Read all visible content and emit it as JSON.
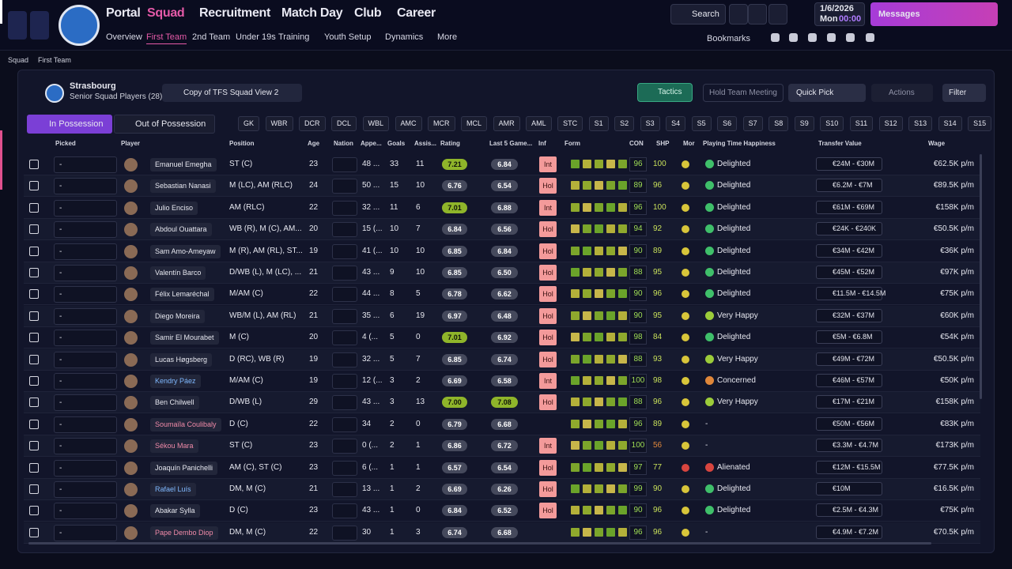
{
  "nav": {
    "primary": [
      "Portal",
      "Squad",
      "Recruitment",
      "Match Day",
      "Club",
      "Career"
    ],
    "secondary": [
      "Overview",
      "First Team",
      "2nd Team",
      "Under 19s",
      "Training",
      "Youth Setup",
      "Dynamics",
      "More"
    ],
    "search": "Search",
    "date": "1/6/2026",
    "day": "Mon",
    "time": "00:00",
    "messages": "Messages",
    "bookmarks": "Bookmarks"
  },
  "breadcrumb": [
    "Squad",
    "First Team"
  ],
  "team": {
    "name": "Strasbourg",
    "subtitle": "Senior Squad Players (28)"
  },
  "view": "Copy of TFS Squad View 2",
  "buttons": {
    "tactics": "Tactics",
    "meeting": "Hold Team Meeting",
    "quick_pick": "Quick Pick",
    "actions": "Actions",
    "filter": "Filter"
  },
  "tabs": [
    "In Possession",
    "Out of Possession"
  ],
  "positions": [
    "GK",
    "WBR",
    "DCR",
    "DCL",
    "WBL",
    "AMC",
    "MCR",
    "MCL",
    "AMR",
    "AML",
    "STC",
    "S1",
    "S2",
    "S3",
    "S4",
    "S5",
    "S6",
    "S7",
    "S8",
    "S9",
    "S10",
    "S11",
    "S12",
    "S13",
    "S14",
    "S15"
  ],
  "table": {
    "columns": [
      "Picked",
      "Player",
      "Position",
      "Age",
      "Nation",
      "Appe...",
      "Goals",
      "Assis...",
      "Rating",
      "Last 5 Game...",
      "Inf",
      "Form",
      "CON",
      "SHP",
      "Mor",
      "Playing Time Happiness",
      "Transfer Value",
      "Wage"
    ],
    "rows": [
      {
        "picked": "-",
        "name": "Emanuel Emegha",
        "position": "ST (C)",
        "age": 23,
        "apps": "48 ...",
        "goals": 33,
        "assists": 11,
        "rating": "7.21",
        "last5": "6.84",
        "inf": "Int",
        "con": 96,
        "shp": 100,
        "happiness": "Delighted",
        "value": "€24M - €30M",
        "wage": "€62.5K p/m"
      },
      {
        "picked": "-",
        "name": "Sebastian Nanasi",
        "position": "M (LC), AM (RLC)",
        "age": 24,
        "apps": "50 ...",
        "goals": 15,
        "assists": 10,
        "rating": "6.76",
        "last5": "6.54",
        "inf": "Hol",
        "con": 89,
        "shp": 96,
        "happiness": "Delighted",
        "value": "€6.2M - €7M",
        "wage": "€89.5K p/m"
      },
      {
        "picked": "-",
        "name": "Julio Enciso",
        "position": "AM (RLC)",
        "age": 22,
        "apps": "32 ...",
        "goals": 11,
        "assists": 6,
        "rating": "7.01",
        "last5": "6.88",
        "inf": "Int",
        "con": 96,
        "shp": 100,
        "happiness": "Delighted",
        "value": "€61M - €69M",
        "wage": "€158K p/m"
      },
      {
        "picked": "-",
        "name": "Abdoul Ouattara",
        "position": "WB (R), M (C), AM...",
        "age": 20,
        "apps": "15 (...",
        "goals": 10,
        "assists": 7,
        "rating": "6.84",
        "last5": "6.56",
        "inf": "Hol",
        "con": 94,
        "shp": 92,
        "happiness": "Delighted",
        "value": "€24K - €240K",
        "wage": "€50.5K p/m"
      },
      {
        "picked": "-",
        "name": "Sam Amo-Ameyaw",
        "position": "M (R), AM (RL), ST...",
        "age": 19,
        "apps": "41 (...",
        "goals": 10,
        "assists": 10,
        "rating": "6.85",
        "last5": "6.84",
        "inf": "Hol",
        "con": 90,
        "shp": 89,
        "happiness": "Delighted",
        "value": "€34M - €42M",
        "wage": "€36K p/m"
      },
      {
        "picked": "-",
        "name": "Valentín Barco",
        "position": "D/WB (L), M (LC), ...",
        "age": 21,
        "apps": "43 ...",
        "goals": 9,
        "assists": 10,
        "rating": "6.85",
        "last5": "6.50",
        "inf": "Hol",
        "con": 88,
        "shp": 95,
        "happiness": "Delighted",
        "value": "€45M - €52M",
        "wage": "€97K p/m"
      },
      {
        "picked": "-",
        "name": "Félix Lemaréchal",
        "position": "M/AM (C)",
        "age": 22,
        "apps": "44 ...",
        "goals": 8,
        "assists": 5,
        "rating": "6.78",
        "last5": "6.62",
        "inf": "Hol",
        "con": 90,
        "shp": 96,
        "happiness": "Delighted",
        "value": "€11.5M - €14.5M",
        "wage": "€75K p/m"
      },
      {
        "picked": "-",
        "name": "Diego Moreira",
        "position": "WB/M (L), AM (RL)",
        "age": 21,
        "apps": "35 ...",
        "goals": 6,
        "assists": 19,
        "rating": "6.97",
        "last5": "6.48",
        "inf": "Hol",
        "con": 90,
        "shp": 95,
        "happiness": "Very Happy",
        "value": "€32M - €37M",
        "wage": "€60K p/m"
      },
      {
        "picked": "-",
        "name": "Samir El Mourabet",
        "position": "M (C)",
        "age": 20,
        "apps": "4 (...",
        "goals": 5,
        "assists": 0,
        "rating": "7.01",
        "last5": "6.92",
        "inf": "Hol",
        "con": 98,
        "shp": 84,
        "happiness": "Delighted",
        "value": "€5M - €6.8M",
        "wage": "€54K p/m"
      },
      {
        "picked": "-",
        "name": "Lucas Høgsberg",
        "position": "D (RC), WB (R)",
        "age": 19,
        "apps": "32 ...",
        "goals": 5,
        "assists": 7,
        "rating": "6.85",
        "last5": "6.74",
        "inf": "Hol",
        "con": 88,
        "shp": 93,
        "happiness": "Very Happy",
        "value": "€49M - €72M",
        "wage": "€50.5K p/m"
      },
      {
        "picked": "-",
        "name": "Kendry Páez",
        "name_color": "#7fb8ff",
        "position": "M/AM (C)",
        "age": 19,
        "apps": "12 (...",
        "goals": 3,
        "assists": 2,
        "rating": "6.69",
        "last5": "6.58",
        "inf": "Int",
        "con": 100,
        "shp": 98,
        "happiness": "Concerned",
        "value": "€46M - €57M",
        "wage": "€50K p/m"
      },
      {
        "picked": "-",
        "name": "Ben Chilwell",
        "position": "D/WB (L)",
        "age": 29,
        "apps": "43 ...",
        "goals": 3,
        "assists": 13,
        "rating": "7.00",
        "last5": "7.08",
        "inf": "Hol",
        "con": 88,
        "shp": 96,
        "happiness": "Very Happy",
        "value": "€17M - €21M",
        "wage": "€158K p/m"
      },
      {
        "picked": "-",
        "name": "Soumaïla Coulibaly",
        "name_color": "#f08aa8",
        "position": "D (C)",
        "age": 22,
        "apps": "34",
        "goals": 2,
        "assists": 0,
        "rating": "6.79",
        "last5": "6.68",
        "inf": null,
        "con": 96,
        "shp": 89,
        "happiness": "-",
        "value": "€50M - €56M",
        "wage": "€83K p/m"
      },
      {
        "picked": "-",
        "name": "Sékou Mara",
        "name_color": "#f08aa8",
        "position": "ST (C)",
        "age": 23,
        "apps": "0 (...",
        "goals": 2,
        "assists": 1,
        "rating": "6.86",
        "last5": "6.72",
        "inf": "Int",
        "con": 100,
        "shp": 56,
        "happiness": "-",
        "value": "€3.3M - €4.7M",
        "wage": "€173K p/m"
      },
      {
        "picked": "-",
        "name": "Joaquín Panichelli",
        "position": "AM (C), ST (C)",
        "age": 23,
        "apps": "6 (...",
        "goals": 1,
        "assists": 1,
        "rating": "6.57",
        "last5": "6.54",
        "inf": "Hol",
        "con": 97,
        "shp": 77,
        "happiness": "Alienated",
        "value": "€12M - €15.5M",
        "wage": "€77.5K p/m"
      },
      {
        "picked": "-",
        "name": "Rafael Luís",
        "name_color": "#7fb8ff",
        "position": "DM, M (C)",
        "age": 21,
        "apps": "13 ...",
        "goals": 1,
        "assists": 2,
        "rating": "6.69",
        "last5": "6.26",
        "inf": "Hol",
        "con": 99,
        "shp": 90,
        "happiness": "Delighted",
        "value": "€10M",
        "wage": "€16.5K p/m"
      },
      {
        "picked": "-",
        "name": "Abakar Sylla",
        "position": "D (C)",
        "age": 23,
        "apps": "43 ...",
        "goals": 1,
        "assists": 0,
        "rating": "6.84",
        "last5": "6.52",
        "inf": "Hol",
        "con": 90,
        "shp": 96,
        "happiness": "Delighted",
        "value": "€2.5M - €4.3M",
        "wage": "€75K p/m"
      },
      {
        "picked": "-",
        "name": "Pape Dembo Diop",
        "name_color": "#f08aa8",
        "position": "DM, M (C)",
        "age": 22,
        "apps": "30",
        "goals": 1,
        "assists": 3,
        "rating": "6.74",
        "last5": "6.68",
        "inf": null,
        "con": 96,
        "shp": 96,
        "happiness": "-",
        "value": "€4.9M - €7.2M",
        "wage": "€70.5K p/m"
      }
    ]
  }
}
